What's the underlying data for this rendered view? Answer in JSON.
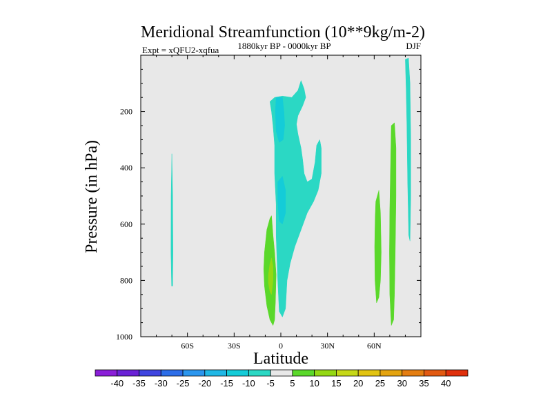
{
  "chart_data": {
    "type": "heatmap",
    "title": "Meridional Streamfunction (10**9kg/m-2)",
    "subtitle_left": "Expt = xQFU2-xqfua",
    "subtitle_center": "1880kyr BP - 0000kyr BP",
    "subtitle_right": "DJF",
    "xlabel": "Latitude",
    "ylabel": "Pressure (in hPa)",
    "xlim": [
      -90,
      90
    ],
    "ylim": [
      1000,
      0
    ],
    "x_ticks": [
      {
        "value": -60,
        "label": "60S"
      },
      {
        "value": -30,
        "label": "30S"
      },
      {
        "value": 0,
        "label": "0"
      },
      {
        "value": 30,
        "label": "30N"
      },
      {
        "value": 60,
        "label": "60N"
      }
    ],
    "y_ticks": [
      {
        "value": 200,
        "label": "200"
      },
      {
        "value": 400,
        "label": "400"
      },
      {
        "value": 600,
        "label": "600"
      },
      {
        "value": 800,
        "label": "800"
      },
      {
        "value": 1000,
        "label": "1000"
      }
    ],
    "colorbar": {
      "labels": [
        "-40",
        "-35",
        "-30",
        "-25",
        "-20",
        "-15",
        "-10",
        "-5",
        "5",
        "10",
        "15",
        "20",
        "25",
        "30",
        "35",
        "40"
      ],
      "colors": [
        "#8a1ed8",
        "#6a22d6",
        "#3f45e0",
        "#2d6ee8",
        "#2b96ee",
        "#20b8e6",
        "#14ccd8",
        "#2bd8c4",
        "#e8e8e8",
        "#5ad82a",
        "#94d814",
        "#c6d818",
        "#e2c412",
        "#e4a410",
        "#e47e12",
        "#e25a12",
        "#e0300c"
      ]
    },
    "contours": [
      {
        "name": "cyan-sh-high-latitude",
        "color": "#2bd8c4",
        "points": [
          [
            -70,
            350
          ],
          [
            -69.5,
            500
          ],
          [
            -69.3,
            700
          ],
          [
            -69.5,
            820
          ],
          [
            -70.2,
            820
          ],
          [
            -70.6,
            700
          ],
          [
            -70.5,
            500
          ]
        ]
      },
      {
        "name": "cyan-equatorial-plume",
        "color": "#2bd8c4",
        "points": [
          [
            -7,
            165
          ],
          [
            -4,
            150
          ],
          [
            1,
            145
          ],
          [
            7,
            150
          ],
          [
            11,
            125
          ],
          [
            13,
            90
          ],
          [
            15,
            120
          ],
          [
            16,
            150
          ],
          [
            14,
            180
          ],
          [
            11,
            215
          ],
          [
            10,
            245
          ],
          [
            11,
            280
          ],
          [
            13,
            330
          ],
          [
            14,
            370
          ],
          [
            15,
            420
          ],
          [
            17,
            450
          ],
          [
            20,
            440
          ],
          [
            22,
            380
          ],
          [
            23,
            320
          ],
          [
            25,
            300
          ],
          [
            26,
            330
          ],
          [
            26,
            420
          ],
          [
            24,
            480
          ],
          [
            21,
            520
          ],
          [
            17,
            560
          ],
          [
            13,
            620
          ],
          [
            9,
            680
          ],
          [
            6,
            740
          ],
          [
            4,
            800
          ],
          [
            3,
            900
          ],
          [
            1,
            930
          ],
          [
            -1,
            910
          ],
          [
            -2,
            800
          ],
          [
            -3,
            640
          ],
          [
            -3,
            530
          ],
          [
            -4,
            420
          ],
          [
            -4,
            320
          ],
          [
            -5,
            250
          ],
          [
            -6,
            200
          ]
        ]
      },
      {
        "name": "cyan-sh-bar",
        "color": "#14ccd8",
        "points": [
          [
            -3.5,
            200
          ],
          [
            -3,
            150
          ],
          [
            1,
            150
          ],
          [
            2,
            200
          ],
          [
            2.5,
            250
          ],
          [
            1.5,
            300
          ],
          [
            -1,
            310
          ],
          [
            -3,
            270
          ]
        ]
      },
      {
        "name": "cyan-sub-bar",
        "color": "#14ccd8",
        "points": [
          [
            -2,
            450
          ],
          [
            1,
            430
          ],
          [
            3,
            480
          ],
          [
            3,
            560
          ],
          [
            1,
            600
          ],
          [
            -1,
            590
          ],
          [
            -2,
            520
          ]
        ]
      },
      {
        "name": "green-tropical-sh",
        "color": "#5ad82a",
        "points": [
          [
            -10.5,
            700
          ],
          [
            -9,
            620
          ],
          [
            -7,
            580
          ],
          [
            -6,
            570
          ],
          [
            -5,
            640
          ],
          [
            -4,
            700
          ],
          [
            -3,
            780
          ],
          [
            -3.5,
            880
          ],
          [
            -4,
            940
          ],
          [
            -5,
            960
          ],
          [
            -7,
            940
          ],
          [
            -9,
            890
          ],
          [
            -10.5,
            820
          ],
          [
            -11,
            760
          ]
        ]
      },
      {
        "name": "yellowgreen-tropical-sh-core",
        "color": "#94d814",
        "points": [
          [
            -8,
            780
          ],
          [
            -7,
            740
          ],
          [
            -6,
            720
          ],
          [
            -5,
            750
          ],
          [
            -5,
            800
          ],
          [
            -6,
            850
          ],
          [
            -7,
            840
          ],
          [
            -8,
            810
          ]
        ]
      },
      {
        "name": "green-nh-60-a",
        "color": "#5ad82a",
        "points": [
          [
            61,
            520
          ],
          [
            63,
            480
          ],
          [
            64,
            560
          ],
          [
            64.5,
            700
          ],
          [
            64,
            800
          ],
          [
            63,
            860
          ],
          [
            61.5,
            880
          ],
          [
            60.5,
            800
          ],
          [
            60.3,
            680
          ],
          [
            60.6,
            580
          ]
        ]
      },
      {
        "name": "green-nh-70-b",
        "color": "#5ad82a",
        "points": [
          [
            71,
            250
          ],
          [
            73,
            240
          ],
          [
            74,
            330
          ],
          [
            74,
            500
          ],
          [
            73.5,
            700
          ],
          [
            73,
            850
          ],
          [
            72.5,
            940
          ],
          [
            71,
            960
          ],
          [
            70,
            850
          ],
          [
            69.8,
            700
          ],
          [
            70,
            550
          ],
          [
            70.5,
            400
          ]
        ]
      },
      {
        "name": "cyan-nh-polar",
        "color": "#2bd8c4",
        "points": [
          [
            80,
            15
          ],
          [
            82,
            10
          ],
          [
            83,
            100
          ],
          [
            83.5,
            300
          ],
          [
            83.5,
            500
          ],
          [
            83,
            660
          ],
          [
            82.2,
            640
          ],
          [
            81.5,
            450
          ],
          [
            81,
            250
          ],
          [
            80.5,
            120
          ]
        ]
      }
    ]
  }
}
